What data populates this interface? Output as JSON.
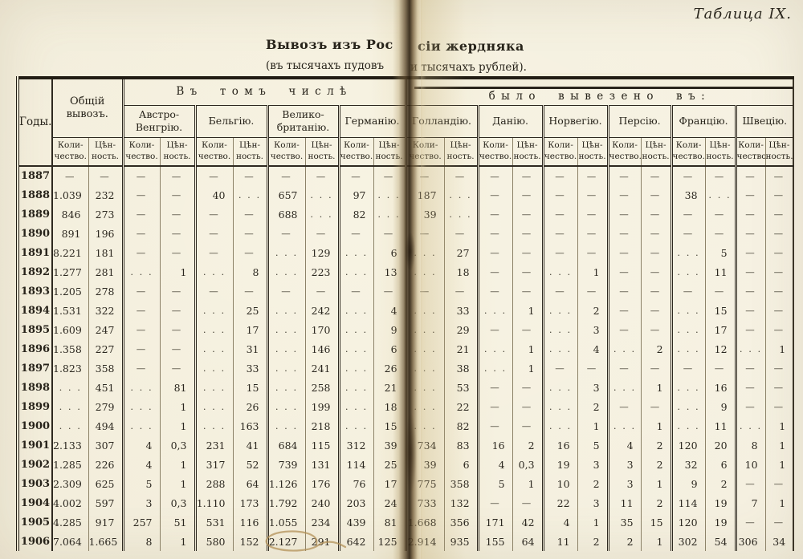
{
  "page": {
    "corner_label": "Таблица IX.",
    "title_left": "Вывозъ изъ Рос",
    "title_right": "сіи жердняка",
    "subtitle_left": "(въ тысячахъ пудовъ",
    "subtitle_right": "и тысячахъ рублей)."
  },
  "annotations": {
    "pen_mark": "handwritten ink loop circling the 1906 values 2.127 and 291"
  },
  "table": {
    "years_header": "Годы.",
    "total_header": "Общій вывозъ.",
    "included_left": "Въ томъ числѣ",
    "included_right": "было вывезено въ:",
    "quantity_label": "Коли­чество.",
    "value_label": "Цѣн­ность.",
    "countries": [
      "Австро-Венгрію.",
      "Бельгію.",
      "Велико-британію.",
      "Германію.",
      "Голландію.",
      "Данію.",
      "Норвегію.",
      "Персію.",
      "Францію.",
      "Швецію."
    ],
    "rows": [
      {
        "year": "1887",
        "values": [
          "—",
          "—",
          "—",
          "—",
          "—",
          "—",
          "—",
          "—",
          "—",
          "—",
          "—",
          "—",
          "—",
          "—",
          "—",
          "—",
          "—",
          "—",
          "—",
          "—",
          "—",
          "—"
        ]
      },
      {
        "year": "1888",
        "values": [
          "1.039",
          "232",
          "—",
          "—",
          "40",
          ". . .",
          "657",
          ". . .",
          "97",
          ". . .",
          "187",
          ". . .",
          "—",
          "—",
          "—",
          "—",
          "—",
          "—",
          "38",
          ". . .",
          "—",
          "—"
        ]
      },
      {
        "year": "1889",
        "values": [
          "846",
          "273",
          "—",
          "—",
          "—",
          "—",
          "688",
          ". . .",
          "82",
          ". . .",
          "39",
          ". . .",
          "—",
          "—",
          "—",
          "—",
          "—",
          "—",
          "—",
          "—",
          "—",
          "—"
        ]
      },
      {
        "year": "1890",
        "values": [
          "891",
          "196",
          "—",
          "—",
          "—",
          "—",
          "—",
          "—",
          "—",
          "—",
          "—",
          "—",
          "—",
          "—",
          "—",
          "—",
          "—",
          "—",
          "—",
          "—",
          "—",
          "—"
        ]
      },
      {
        "year": "1891",
        "values": [
          "8.221",
          "181",
          "—",
          "—",
          "—",
          "—",
          ". . .",
          "129",
          ". . .",
          "6",
          ". . .",
          "27",
          "—",
          "—",
          "—",
          "—",
          "—",
          "—",
          ". . .",
          "5",
          "—",
          "—"
        ]
      },
      {
        "year": "1892",
        "values": [
          "1.277",
          "281",
          ". . .",
          "1",
          ". . .",
          "8",
          ". . .",
          "223",
          ". . .",
          "13",
          ". . .",
          "18",
          "—",
          "—",
          ". . .",
          "1",
          "—",
          "—",
          ". . .",
          "11",
          "—",
          "—"
        ]
      },
      {
        "year": "1893",
        "values": [
          "1.205",
          "278",
          "—",
          "—",
          "—",
          "—",
          "—",
          "—",
          "—",
          "—",
          "—",
          "—",
          "—",
          "—",
          "—",
          "—",
          "—",
          "—",
          "—",
          "—",
          "—",
          "—"
        ]
      },
      {
        "year": "1894",
        "values": [
          "1.531",
          "322",
          "—",
          "—",
          ". . .",
          "25",
          ". . .",
          "242",
          ". . .",
          "4",
          ". . .",
          "33",
          ". . .",
          "1",
          ". . .",
          "2",
          "—",
          "—",
          ". . .",
          "15",
          "—",
          "—"
        ]
      },
      {
        "year": "1895",
        "values": [
          "1.609",
          "247",
          "—",
          "—",
          ". . .",
          "17",
          ". . .",
          "170",
          ". . .",
          "9",
          ". . .",
          "29",
          "—",
          "—",
          ". . .",
          "3",
          "—",
          "—",
          ". . .",
          "17",
          "—",
          "—"
        ]
      },
      {
        "year": "1896",
        "values": [
          "1.358",
          "227",
          "—",
          "—",
          ". . .",
          "31",
          ". . .",
          "146",
          ". . .",
          "6",
          ". . .",
          "21",
          ". . .",
          "1",
          ". . .",
          "4",
          ". . .",
          "2",
          ". . .",
          "12",
          ". . .",
          "1"
        ]
      },
      {
        "year": "1897",
        "values": [
          "1.823",
          "358",
          "—",
          "—",
          ". . .",
          "33",
          ". . .",
          "241",
          ". . .",
          "26",
          ". . .",
          "38",
          ". . .",
          "1",
          "—",
          "—",
          "—",
          "—",
          "—",
          "—",
          "—",
          "—"
        ]
      },
      {
        "year": "1898",
        "values": [
          ". . .",
          "451",
          ". . .",
          "81",
          ". . .",
          "15",
          ". . .",
          "258",
          ". . .",
          "21",
          ". . .",
          "53",
          "—",
          "—",
          ". . .",
          "3",
          ". . .",
          "1",
          ". . .",
          "16",
          "—",
          "—"
        ]
      },
      {
        "year": "1899",
        "values": [
          ". . .",
          "279",
          ". . .",
          "1",
          ". . .",
          "26",
          ". . .",
          "199",
          ". . .",
          "18",
          ". . .",
          "22",
          "—",
          "—",
          ". . .",
          "2",
          "—",
          "—",
          ". . .",
          "9",
          "—",
          "—"
        ]
      },
      {
        "year": "1900",
        "values": [
          ". . .",
          "494",
          ". . .",
          "1",
          ". . .",
          "163",
          ". . .",
          "218",
          ". . .",
          "15",
          ". . .",
          "82",
          "—",
          "—",
          ". . .",
          "1",
          ". . .",
          "1",
          ". . .",
          "11",
          ". . .",
          "1"
        ]
      },
      {
        "year": "1901",
        "values": [
          "2.133",
          "307",
          "4",
          "0,3",
          "231",
          "41",
          "684",
          "115",
          "312",
          "39",
          "734",
          "83",
          "16",
          "2",
          "16",
          "5",
          "4",
          "2",
          "120",
          "20",
          "8",
          "1"
        ]
      },
      {
        "year": "1902",
        "values": [
          "1.285",
          "226",
          "4",
          "1",
          "317",
          "52",
          "739",
          "131",
          "114",
          "25",
          "39",
          "6",
          "4",
          "0,3",
          "19",
          "3",
          "3",
          "2",
          "32",
          "6",
          "10",
          "1"
        ]
      },
      {
        "year": "1903",
        "values": [
          "2.309",
          "625",
          "5",
          "1",
          "288",
          "64",
          "1.126",
          "176",
          "76",
          "17",
          "775",
          "358",
          "5",
          "1",
          "10",
          "2",
          "3",
          "1",
          "9",
          "2",
          "—",
          "—"
        ]
      },
      {
        "year": "1904",
        "values": [
          "4.002",
          "597",
          "3",
          "0,3",
          "1.110",
          "173",
          "1.792",
          "240",
          "203",
          "24",
          "733",
          "132",
          "—",
          "—",
          "22",
          "3",
          "11",
          "2",
          "114",
          "19",
          "7",
          "1"
        ]
      },
      {
        "year": "1905",
        "values": [
          "4.285",
          "917",
          "257",
          "51",
          "531",
          "116",
          "1.055",
          "234",
          "439",
          "81",
          "1.668",
          "356",
          "171",
          "42",
          "4",
          "1",
          "35",
          "15",
          "120",
          "19",
          "—",
          "—"
        ]
      },
      {
        "year": "1906",
        "values": [
          "7.064",
          "1.665",
          "8",
          "1",
          "580",
          "152",
          "2.127",
          "291",
          "642",
          "125",
          "2.914",
          "935",
          "155",
          "64",
          "11",
          "2",
          "2",
          "1",
          "302",
          "54",
          "306",
          "34"
        ]
      }
    ]
  }
}
